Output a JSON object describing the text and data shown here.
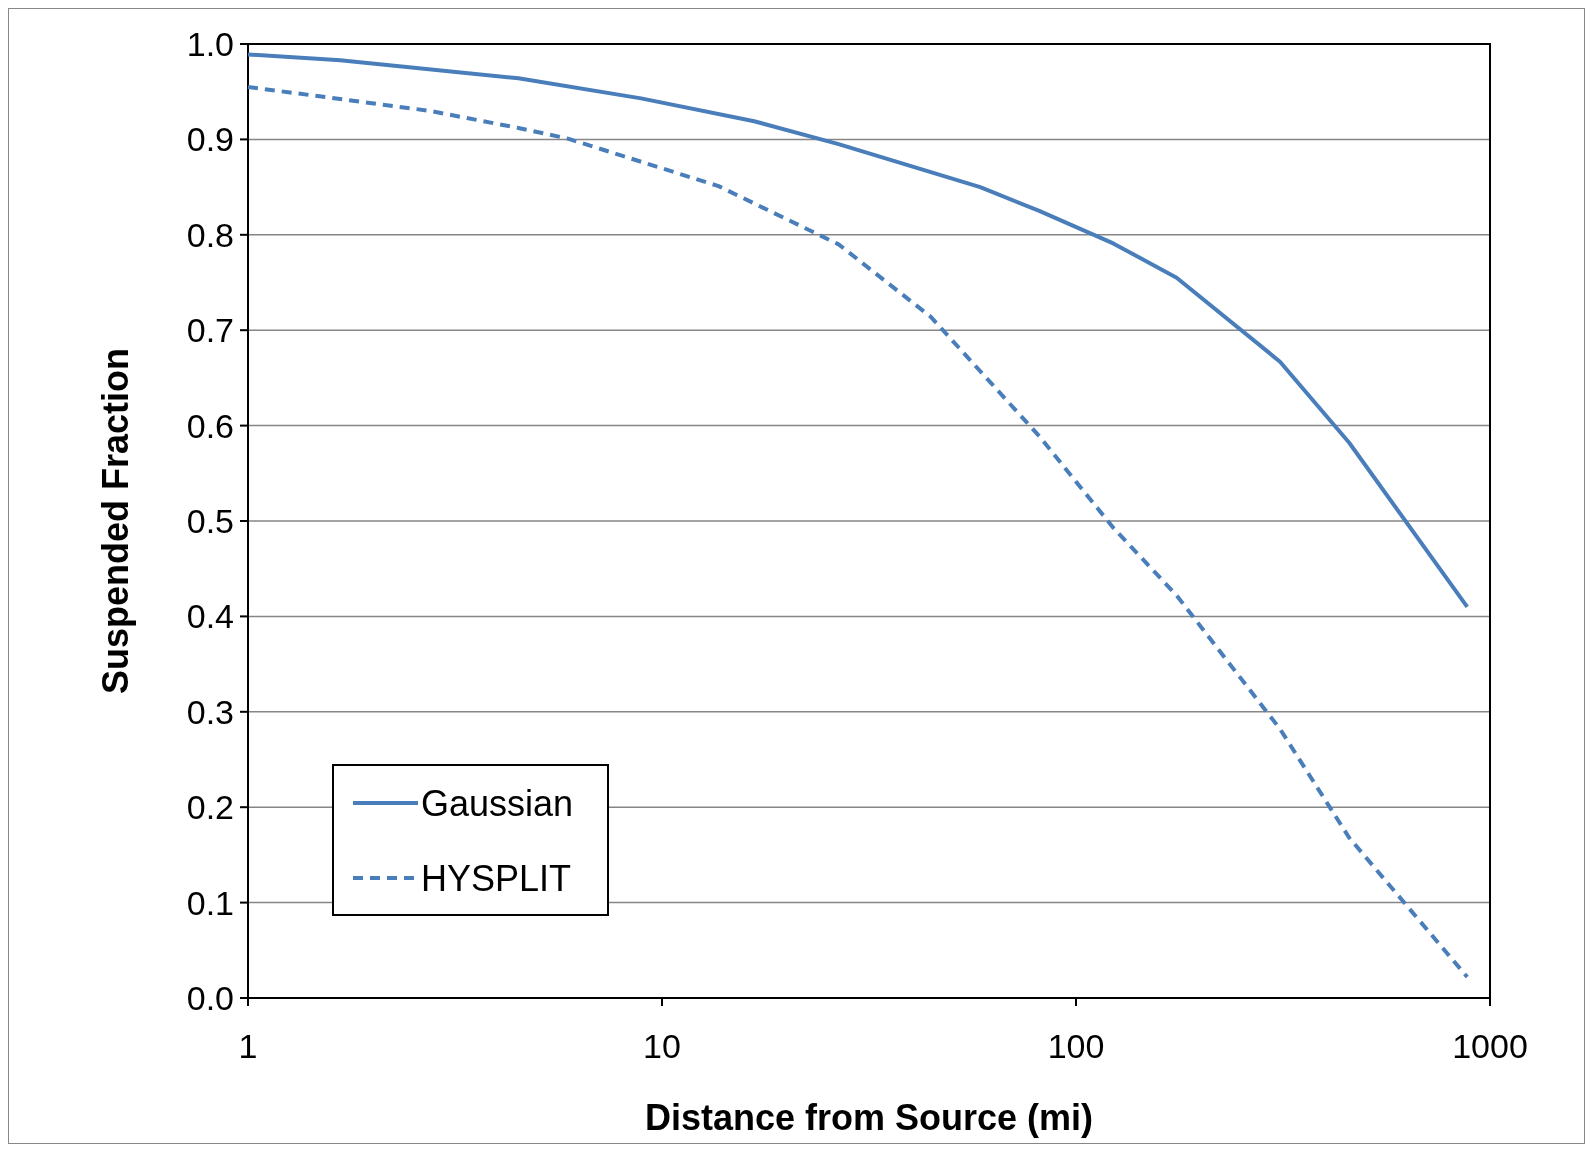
{
  "chart_data": {
    "type": "line",
    "xlabel": "Distance from Source (mi)",
    "ylabel": "Suspended Fraction",
    "log": "x",
    "xlim": [
      1,
      1000
    ],
    "xticks": [
      1,
      10,
      100,
      1000
    ],
    "ylim": [
      0,
      1
    ],
    "yticks": [
      {
        "value": 0,
        "label": "0.0"
      },
      {
        "value": 0.1,
        "label": "0.1"
      },
      {
        "value": 0.2,
        "label": "0.2"
      },
      {
        "value": 0.3,
        "label": "0.3"
      },
      {
        "value": 0.4,
        "label": "0.4"
      },
      {
        "value": 0.5,
        "label": "0.5"
      },
      {
        "value": 0.6,
        "label": "0.6"
      },
      {
        "value": 0.7,
        "label": "0.7"
      },
      {
        "value": 0.8,
        "label": "0.8"
      },
      {
        "value": 0.9,
        "label": "0.9"
      },
      {
        "value": 1,
        "label": "1.0"
      }
    ],
    "grid": "y",
    "legend": "bottom left",
    "series": [
      {
        "name": "Gaussian",
        "color": "#4a7ebb",
        "line_style": "solid",
        "x": [
          1,
          1.67,
          4.5,
          8.9,
          16.7,
          26.7,
          58.7,
          81.5,
          123,
          175,
          311,
          457,
          881
        ],
        "values": [
          0.989,
          0.983,
          0.964,
          0.943,
          0.919,
          0.895,
          0.85,
          0.825,
          0.791,
          0.755,
          0.667,
          0.582,
          0.41
        ]
      },
      {
        "name": "HYSPLIT",
        "color": "#4a7ebb",
        "line_style": "dashed",
        "x": [
          1,
          2.74,
          4.5,
          5.9,
          13.7,
          26.7,
          44.6,
          81.5,
          123,
          175,
          311,
          457,
          652,
          881
        ],
        "values": [
          0.955,
          0.93,
          0.912,
          0.901,
          0.851,
          0.79,
          0.714,
          0.589,
          0.493,
          0.422,
          0.282,
          0.168,
          0.089,
          0.022
        ]
      }
    ]
  }
}
